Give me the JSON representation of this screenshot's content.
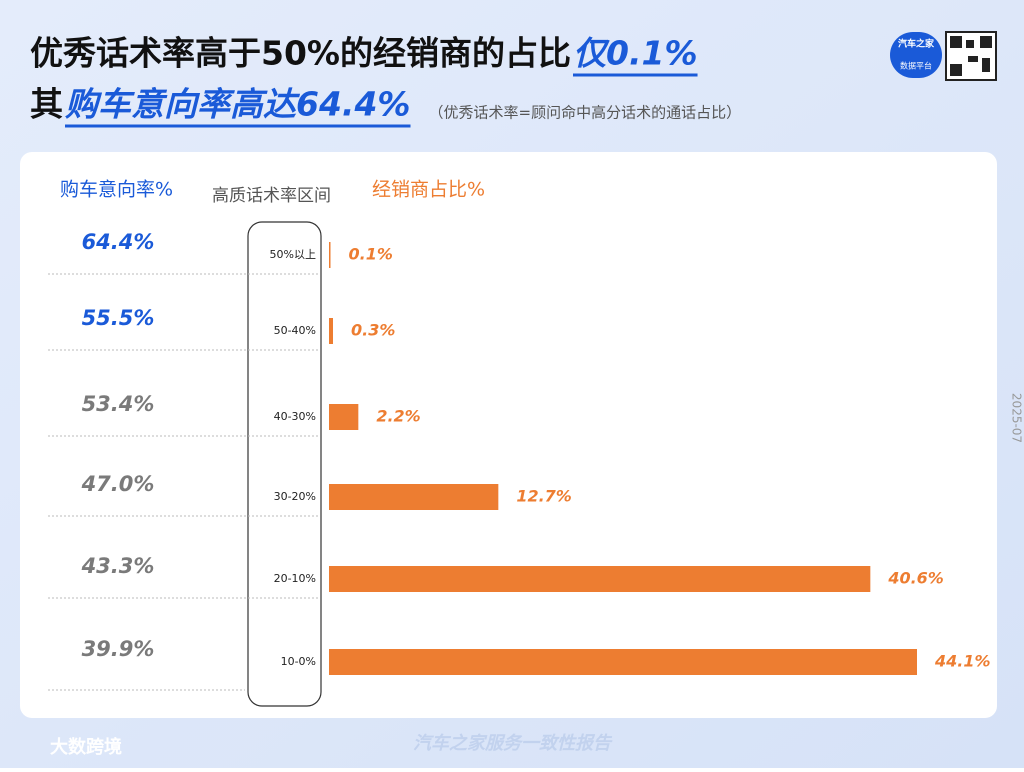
{
  "header": {
    "title_plain": "优秀话术率高于50%的经销商的占比",
    "title_highlight": "仅0.1%",
    "line2_plain": "其",
    "line2_highlight": "购车意向率高达64.4%",
    "note": "（优秀话术率=顾问命中高分话术的通话占比）",
    "badge_top": "汽车之家",
    "badge_bottom": "数据平台"
  },
  "chart_data": {
    "type": "bar",
    "orientation": "horizontal",
    "category_label": "高质话术率区间",
    "categories": [
      "50%以上",
      "50-40%",
      "40-30%",
      "30-20%",
      "20-10%",
      "10-0%"
    ],
    "intent": {
      "name": "购车意向率%",
      "values": [
        64.4,
        55.5,
        53.4,
        47.0,
        43.3,
        39.9
      ],
      "value_labels": [
        "64.4%",
        "55.5%",
        "53.4%",
        "47.0%",
        "43.3%",
        "39.9%"
      ],
      "colors": [
        "#1a5ad8",
        "#1a5ad8",
        "#7a7a7a",
        "#7a7a7a",
        "#7a7a7a",
        "#7a7a7a"
      ]
    },
    "series": [
      {
        "name": "经销商占比%",
        "color": "#ed7d31",
        "values": [
          0.1,
          0.3,
          2.2,
          12.7,
          40.6,
          44.1
        ],
        "value_labels": [
          "0.1%",
          "0.3%",
          "2.2%",
          "12.7%",
          "40.6%",
          "44.1%"
        ]
      }
    ]
  },
  "side_date": "2025-07",
  "footer": {
    "logo": "大数跨境",
    "center": "汽车之家服务一致性报告"
  }
}
